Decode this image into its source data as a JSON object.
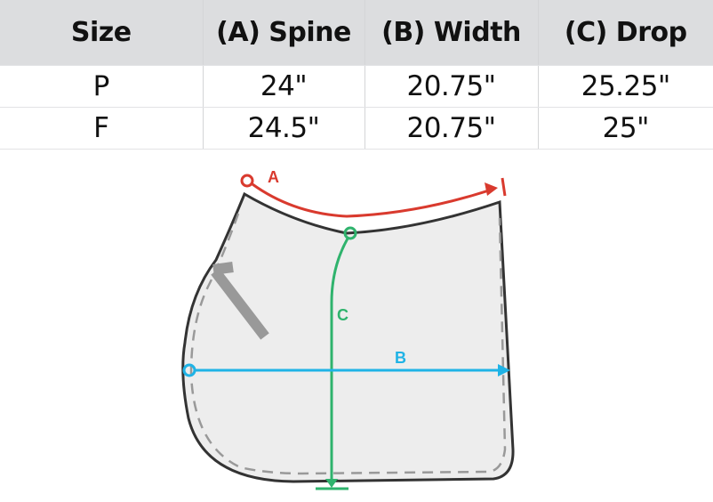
{
  "size_table": {
    "headers": [
      "Size",
      "(A) Spine",
      "(B) Width",
      "(C) Drop"
    ],
    "rows": [
      [
        "P",
        "24\"",
        "20.75\"",
        "25.25\""
      ],
      [
        "F",
        "24.5\"",
        "20.75\"",
        "25\""
      ]
    ]
  },
  "diagram": {
    "labels": {
      "spine": "A",
      "width": "B",
      "drop": "C"
    },
    "colors": {
      "spine": "#d93a2e",
      "width": "#1fb3e6",
      "drop": "#2fb36d",
      "pad_fill": "#ededed",
      "outline": "#333333",
      "stitch": "#999999"
    }
  }
}
